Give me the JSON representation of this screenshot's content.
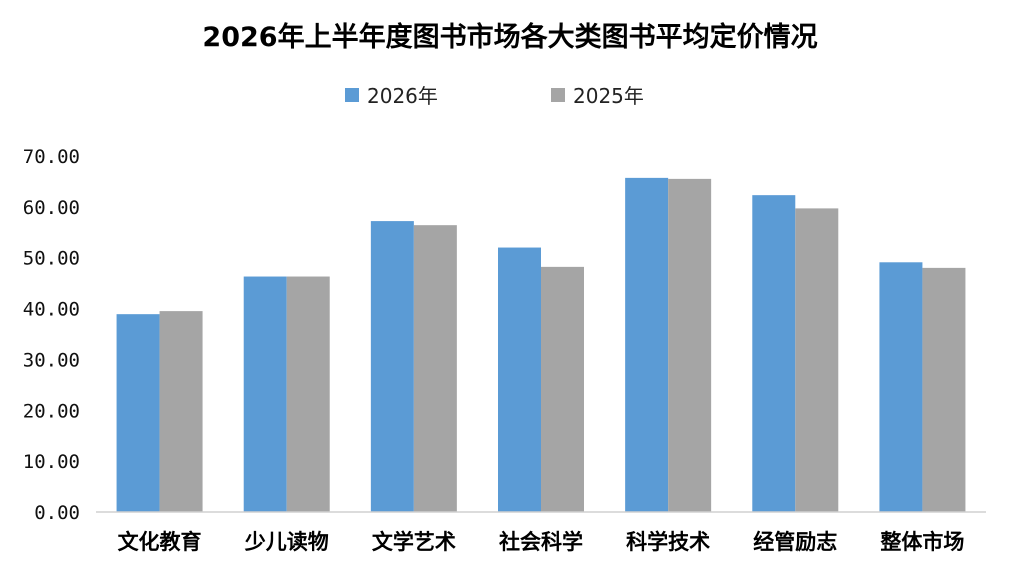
{
  "chart_data": {
    "type": "bar",
    "title": "2026年上半年度图书市场各大类图书平均定价情况",
    "categories": [
      "文化教育",
      "少儿读物",
      "文学艺术",
      "社会科学",
      "科学技术",
      "经管励志",
      "整体市场"
    ],
    "series": [
      {
        "name": "2026年",
        "color": "#5B9BD5",
        "values": [
          38.9,
          46.3,
          57.2,
          52.0,
          65.7,
          62.3,
          49.1
        ]
      },
      {
        "name": "2025年",
        "color": "#A5A5A5",
        "values": [
          39.5,
          46.3,
          56.4,
          48.2,
          65.5,
          59.7,
          48.0
        ]
      }
    ],
    "yticks": [
      "0.00",
      "10.00",
      "20.00",
      "30.00",
      "40.00",
      "50.00",
      "60.00",
      "70.00"
    ],
    "ylim": [
      0,
      70
    ],
    "xlabel": "",
    "ylabel": "",
    "grid": false,
    "legend_position": "top"
  }
}
